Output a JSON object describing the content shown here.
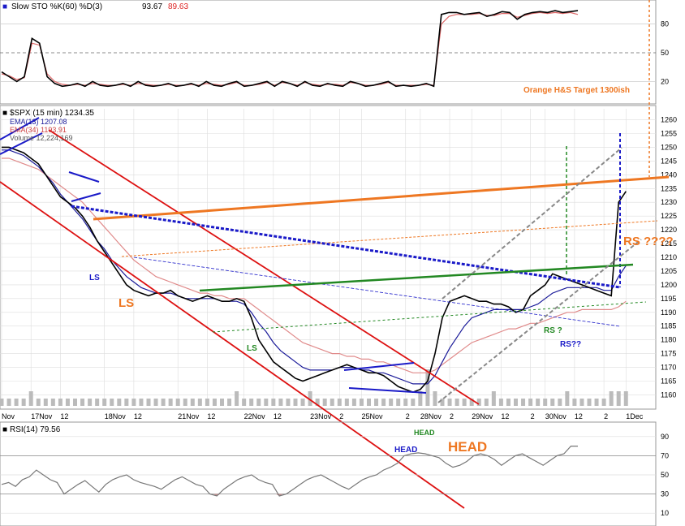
{
  "chart_data": {
    "type": "line",
    "ylim": [
      1156,
      1264
    ],
    "y_ticks": [
      1160,
      1165,
      1170,
      1175,
      1180,
      1185,
      1190,
      1195,
      1200,
      1205,
      1210,
      1215,
      1220,
      1225,
      1230,
      1235,
      1240,
      1245,
      1250,
      1255,
      1260
    ],
    "x_tick_labels": [
      {
        "i": 0,
        "text": "Nov"
      },
      {
        "i": 4,
        "text": "17Nov"
      },
      {
        "i": 8,
        "text": "12"
      },
      {
        "i": 14,
        "text": "18Nov"
      },
      {
        "i": 18,
        "text": "12"
      },
      {
        "i": 24,
        "text": "21Nov"
      },
      {
        "i": 28,
        "text": "12"
      },
      {
        "i": 33,
        "text": "22Nov"
      },
      {
        "i": 37,
        "text": "12"
      },
      {
        "i": 42,
        "text": "23Nov"
      },
      {
        "i": 46,
        "text": "2"
      },
      {
        "i": 49,
        "text": "25Nov"
      },
      {
        "i": 55,
        "text": "2"
      },
      {
        "i": 57,
        "text": "28Nov"
      },
      {
        "i": 61,
        "text": "2"
      },
      {
        "i": 64,
        "text": "29Nov"
      },
      {
        "i": 68,
        "text": "12"
      },
      {
        "i": 72,
        "text": "2"
      },
      {
        "i": 74,
        "text": "30Nov"
      },
      {
        "i": 78,
        "text": "12"
      },
      {
        "i": 82,
        "text": "2"
      },
      {
        "i": 85,
        "text": "1Dec"
      }
    ],
    "price_header": {
      "symbol": "$SPX (15 min) 1234.35",
      "ema13": "EMA(13) 1207.08",
      "ema34": "EMA(34) 1193.91",
      "volume": "Volume 12,224,169"
    },
    "price_close": [
      1250,
      1250,
      1249,
      1248,
      1246,
      1244,
      1240,
      1236,
      1232,
      1230,
      1228,
      1225,
      1221,
      1216,
      1212,
      1208,
      1204,
      1200,
      1198,
      1197,
      1196,
      1197,
      1197,
      1198,
      1196,
      1195,
      1194,
      1195,
      1196,
      1195,
      1194,
      1194,
      1195,
      1194,
      1188,
      1180,
      1176,
      1172,
      1170,
      1168,
      1166,
      1165,
      1166,
      1167,
      1168,
      1169,
      1170,
      1171,
      1170,
      1169,
      1168,
      1168,
      1167,
      1165,
      1163,
      1162,
      1161,
      1162,
      1165,
      1175,
      1188,
      1194,
      1195,
      1196,
      1195,
      1194,
      1194,
      1193,
      1193,
      1192,
      1190,
      1191,
      1196,
      1198,
      1200,
      1204,
      1203,
      1202,
      1201,
      1200,
      1199,
      1198,
      1197,
      1196,
      1230,
      1234
    ],
    "ema13": [
      1249,
      1249,
      1248,
      1247,
      1245,
      1243,
      1240,
      1237,
      1233,
      1230,
      1227,
      1224,
      1220,
      1216,
      1213,
      1209,
      1206,
      1203,
      1201,
      1199,
      1198,
      1197,
      1197,
      1197,
      1196,
      1195,
      1195,
      1195,
      1195,
      1195,
      1194,
      1194,
      1194,
      1193,
      1190,
      1186,
      1183,
      1179,
      1176,
      1174,
      1172,
      1170,
      1169,
      1169,
      1169,
      1169,
      1170,
      1170,
      1170,
      1169,
      1169,
      1168,
      1168,
      1167,
      1166,
      1165,
      1164,
      1164,
      1164,
      1167,
      1172,
      1177,
      1181,
      1185,
      1188,
      1189,
      1190,
      1191,
      1191,
      1191,
      1191,
      1191,
      1192,
      1193,
      1195,
      1197,
      1198,
      1199,
      1199,
      1199,
      1199,
      1199,
      1198,
      1198,
      1203,
      1207
    ],
    "ema34": [
      1246,
      1246,
      1245,
      1244,
      1243,
      1242,
      1240,
      1238,
      1236,
      1234,
      1232,
      1230,
      1227,
      1224,
      1221,
      1218,
      1215,
      1212,
      1209,
      1207,
      1205,
      1203,
      1202,
      1201,
      1200,
      1199,
      1198,
      1197,
      1197,
      1196,
      1196,
      1195,
      1195,
      1195,
      1193,
      1191,
      1189,
      1187,
      1185,
      1183,
      1181,
      1179,
      1178,
      1177,
      1176,
      1175,
      1175,
      1174,
      1174,
      1173,
      1173,
      1172,
      1172,
      1171,
      1170,
      1169,
      1168,
      1168,
      1168,
      1169,
      1171,
      1173,
      1175,
      1177,
      1179,
      1180,
      1181,
      1182,
      1183,
      1184,
      1184,
      1185,
      1186,
      1186,
      1187,
      1188,
      1189,
      1190,
      1190,
      1191,
      1191,
      1191,
      1191,
      1191,
      1192,
      1194
    ],
    "volume": [
      1,
      1,
      1,
      1,
      2,
      1,
      1,
      1,
      1,
      1,
      1,
      1,
      1,
      1,
      1,
      1,
      1,
      1,
      1,
      1,
      1,
      1,
      1,
      1,
      1,
      1,
      1,
      1,
      1,
      1,
      1,
      1,
      2,
      1,
      1,
      1,
      1,
      1,
      1,
      1,
      1,
      1,
      2,
      1,
      1,
      1,
      1,
      1,
      1,
      1,
      1,
      1,
      1,
      1,
      1,
      1,
      1,
      2,
      5,
      2,
      1,
      1,
      1,
      1,
      1,
      1,
      1,
      2,
      1,
      1,
      1,
      1,
      1,
      1,
      1,
      1,
      1,
      2,
      1,
      1,
      1,
      1,
      1,
      2,
      2,
      2
    ],
    "sto_header": {
      "label": "Slow STO %K(60) %D(3)",
      "k": "93.67",
      "d": "89.63"
    },
    "sto_ylim": [
      0,
      100
    ],
    "sto_ticks": [
      20,
      50,
      80
    ],
    "sto_k": [
      30,
      25,
      20,
      25,
      65,
      60,
      25,
      18,
      15,
      16,
      18,
      15,
      20,
      16,
      15,
      16,
      18,
      15,
      20,
      16,
      15,
      16,
      18,
      15,
      16,
      18,
      15,
      20,
      16,
      15,
      18,
      20,
      15,
      16,
      18,
      20,
      15,
      20,
      18,
      15,
      20,
      16,
      15,
      18,
      16,
      15,
      20,
      18,
      15,
      16,
      18,
      20,
      15,
      16,
      15,
      16,
      18,
      15,
      90,
      92,
      92,
      90,
      91,
      92,
      88,
      90,
      93,
      92,
      85,
      90,
      92,
      93,
      92,
      94,
      92,
      93,
      94
    ],
    "sto_d": [
      28,
      26,
      22,
      24,
      60,
      58,
      28,
      20,
      17,
      16,
      17,
      16,
      18,
      17,
      16,
      16,
      17,
      16,
      18,
      17,
      16,
      16,
      17,
      16,
      16,
      17,
      16,
      18,
      17,
      16,
      17,
      19,
      16,
      16,
      17,
      19,
      16,
      19,
      18,
      16,
      19,
      17,
      16,
      17,
      17,
      16,
      19,
      18,
      16,
      16,
      17,
      19,
      16,
      16,
      16,
      16,
      17,
      16,
      80,
      88,
      90,
      90,
      90,
      91,
      89,
      89,
      91,
      91,
      87,
      89,
      91,
      92,
      91,
      92,
      91,
      92,
      90
    ],
    "rsi_header": "RSI(14) 79.56",
    "rsi_ylim": [
      0,
      100
    ],
    "rsi_ticks": [
      10,
      30,
      50,
      70,
      90
    ],
    "rsi": [
      40,
      42,
      38,
      45,
      48,
      55,
      50,
      45,
      42,
      30,
      35,
      40,
      44,
      38,
      32,
      40,
      45,
      48,
      50,
      45,
      42,
      40,
      38,
      35,
      40,
      45,
      48,
      44,
      40,
      38,
      30,
      28,
      35,
      40,
      45,
      48,
      50,
      45,
      42,
      40,
      28,
      30,
      35,
      40,
      45,
      48,
      50,
      46,
      42,
      38,
      35,
      40,
      45,
      48,
      50,
      55,
      58,
      62,
      70,
      72,
      73,
      72,
      70,
      68,
      62,
      58,
      60,
      64,
      70,
      72,
      70,
      66,
      60,
      65,
      70,
      72,
      68,
      64,
      60,
      65,
      70,
      72,
      80,
      80
    ],
    "annotations": {
      "orange_target": "Orange H&S Target 1300ish",
      "ls_blue": "LS",
      "ls_orange": "LS",
      "ls_green": "LS",
      "head_green": "HEAD",
      "head_blue": "HEAD",
      "head_orange": "HEAD",
      "rs_orange": "RS ????",
      "rs_green": "RS ?",
      "rs_blue": "RS??"
    },
    "colors": {
      "price": "#000000",
      "ema13": "#1a1a99",
      "ema34": "#d88080",
      "volume": "#bbbbbb",
      "channel": "#dd1111",
      "orange": "#ee7722",
      "blue": "#1a1ac8",
      "green": "#228822",
      "gray": "#888888"
    }
  }
}
